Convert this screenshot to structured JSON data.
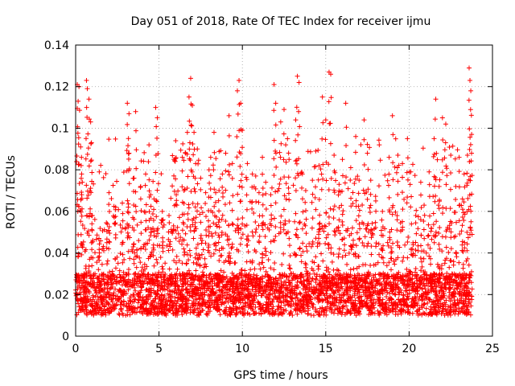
{
  "chart_data": {
    "type": "scatter",
    "title": "Day 051 of 2018, Rate Of TEC Index for receiver ijmu",
    "xlabel": "GPS time / hours",
    "ylabel": "ROTI / TECUs",
    "xlim": [
      0,
      25
    ],
    "ylim": [
      0,
      0.14
    ],
    "xticks": [
      0,
      5,
      10,
      15,
      20,
      25
    ],
    "yticks": [
      0,
      0.02,
      0.04,
      0.06,
      0.08,
      0.1,
      0.12,
      0.14
    ],
    "grid": true,
    "marker": "+",
    "series": [
      {
        "name": "ROTI",
        "color": "#ff0000",
        "x_range": [
          0,
          23.8
        ],
        "baseline": [
          0.01,
          0.03
        ],
        "points": [
          [
            0.1,
            0.121
          ],
          [
            0.15,
            0.113
          ],
          [
            0.2,
            0.12
          ],
          [
            0.3,
            0.091
          ],
          [
            0.35,
            0.086
          ],
          [
            0.4,
            0.074
          ],
          [
            0.65,
            0.123
          ],
          [
            0.7,
            0.119
          ],
          [
            0.8,
            0.114
          ],
          [
            0.9,
            0.103
          ],
          [
            0.95,
            0.093
          ],
          [
            1.0,
            0.058
          ],
          [
            1.4,
            0.047
          ],
          [
            1.9,
            0.054
          ],
          [
            2.0,
            0.069
          ],
          [
            2.4,
            0.062
          ],
          [
            2.8,
            0.064
          ],
          [
            3.1,
            0.112
          ],
          [
            3.2,
            0.107
          ],
          [
            3.2,
            0.088
          ],
          [
            3.5,
            0.076
          ],
          [
            3.6,
            0.108
          ],
          [
            3.9,
            0.072
          ],
          [
            4.2,
            0.078
          ],
          [
            4.4,
            0.092
          ],
          [
            4.5,
            0.068
          ],
          [
            4.7,
            0.066
          ],
          [
            4.8,
            0.11
          ],
          [
            4.9,
            0.105
          ],
          [
            5.2,
            0.06
          ],
          [
            5.6,
            0.058
          ],
          [
            5.9,
            0.085
          ],
          [
            6.0,
            0.094
          ],
          [
            6.4,
            0.086
          ],
          [
            6.5,
            0.07
          ],
          [
            6.7,
            0.098
          ],
          [
            6.8,
            0.115
          ],
          [
            6.9,
            0.124
          ],
          [
            7.0,
            0.111
          ],
          [
            7.1,
            0.098
          ],
          [
            7.2,
            0.083
          ],
          [
            7.3,
            0.09
          ],
          [
            7.5,
            0.076
          ],
          [
            7.8,
            0.069
          ],
          [
            8.0,
            0.08
          ],
          [
            8.1,
            0.086
          ],
          [
            8.3,
            0.098
          ],
          [
            8.4,
            0.069
          ],
          [
            8.6,
            0.07
          ],
          [
            8.8,
            0.078
          ],
          [
            9.0,
            0.088
          ],
          [
            9.2,
            0.106
          ],
          [
            9.4,
            0.083
          ],
          [
            9.7,
            0.118
          ],
          [
            9.8,
            0.123
          ],
          [
            9.9,
            0.112
          ],
          [
            10.0,
            0.099
          ],
          [
            10.3,
            0.083
          ],
          [
            10.6,
            0.078
          ],
          [
            10.8,
            0.077
          ],
          [
            11.0,
            0.069
          ],
          [
            11.2,
            0.086
          ],
          [
            11.4,
            0.074
          ],
          [
            11.7,
            0.068
          ],
          [
            11.9,
            0.121
          ],
          [
            12.0,
            0.112
          ],
          [
            12.3,
            0.103
          ],
          [
            12.5,
            0.109
          ],
          [
            12.6,
            0.092
          ],
          [
            12.8,
            0.085
          ],
          [
            13.2,
            0.104
          ],
          [
            13.3,
            0.125
          ],
          [
            13.4,
            0.122
          ],
          [
            13.6,
            0.078
          ],
          [
            13.8,
            0.07
          ],
          [
            14.2,
            0.075
          ],
          [
            14.4,
            0.089
          ],
          [
            14.6,
            0.082
          ],
          [
            14.8,
            0.115
          ],
          [
            15.0,
            0.104
          ],
          [
            15.2,
            0.127
          ],
          [
            15.3,
            0.126
          ],
          [
            15.5,
            0.087
          ],
          [
            15.8,
            0.073
          ],
          [
            16.0,
            0.085
          ],
          [
            16.2,
            0.112
          ],
          [
            16.5,
            0.081
          ],
          [
            16.8,
            0.096
          ],
          [
            17.0,
            0.075
          ],
          [
            17.3,
            0.104
          ],
          [
            17.5,
            0.088
          ],
          [
            17.7,
            0.075
          ],
          [
            18.0,
            0.065
          ],
          [
            18.4,
            0.06
          ],
          [
            18.8,
            0.086
          ],
          [
            19.0,
            0.106
          ],
          [
            19.3,
            0.081
          ],
          [
            19.6,
            0.083
          ],
          [
            19.9,
            0.095
          ],
          [
            20.1,
            0.079
          ],
          [
            20.4,
            0.058
          ],
          [
            20.7,
            0.074
          ],
          [
            20.9,
            0.063
          ],
          [
            21.2,
            0.079
          ],
          [
            21.5,
            0.095
          ],
          [
            21.6,
            0.114
          ],
          [
            21.8,
            0.072
          ],
          [
            22.0,
            0.105
          ],
          [
            22.2,
            0.102
          ],
          [
            22.5,
            0.087
          ],
          [
            22.8,
            0.072
          ],
          [
            23.0,
            0.086
          ],
          [
            23.2,
            0.066
          ],
          [
            23.3,
            0.078
          ],
          [
            23.5,
            0.087
          ],
          [
            23.6,
            0.129
          ],
          [
            23.65,
            0.123
          ],
          [
            23.7,
            0.118
          ],
          [
            23.75,
            0.097
          ]
        ]
      }
    ]
  }
}
